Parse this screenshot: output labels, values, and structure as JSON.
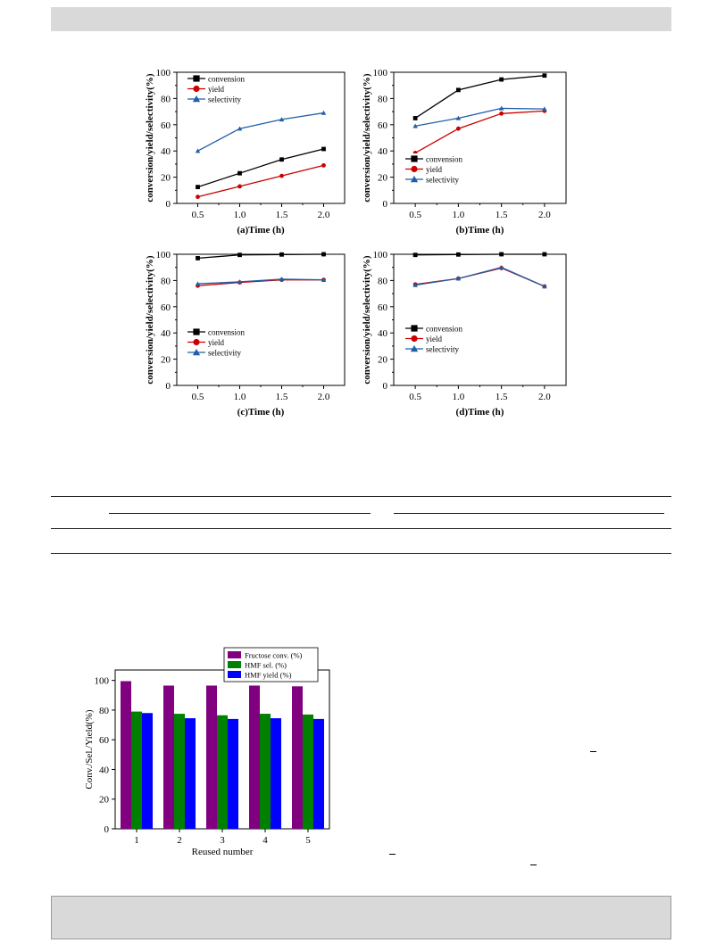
{
  "chart_data": [
    {
      "type": "line",
      "panel": "a",
      "xlabel": "(a)Time (h)",
      "ylabel": "conversion/yield/selectivity(%)",
      "x": [
        0.5,
        1.0,
        1.5,
        2.0
      ],
      "xticks": [
        "0.5",
        "1.0",
        "1.5",
        "2.0"
      ],
      "yticks": [
        "0",
        "20",
        "40",
        "60",
        "80",
        "100"
      ],
      "xlim": [
        0.25,
        2.25
      ],
      "ylim": [
        0,
        100
      ],
      "legend_position": "top-left",
      "series": [
        {
          "name": "convension",
          "color": "#000000",
          "marker": "square",
          "values": [
            12.5,
            23,
            33.5,
            41.5
          ]
        },
        {
          "name": "yield",
          "color": "#cc0000",
          "marker": "circle",
          "values": [
            5,
            13,
            21,
            29
          ]
        },
        {
          "name": "selectivity",
          "color": "#1f5fa8",
          "marker": "triangle",
          "values": [
            40,
            57,
            64,
            69
          ]
        }
      ]
    },
    {
      "type": "line",
      "panel": "b",
      "xlabel": "(b)Time (h)",
      "ylabel": "conversion/yield/selectivity(%)",
      "x": [
        0.5,
        1.0,
        1.5,
        2.0
      ],
      "xticks": [
        "0.5",
        "1.0",
        "1.5",
        "2.0"
      ],
      "yticks": [
        "0",
        "20",
        "40",
        "60",
        "80",
        "100"
      ],
      "xlim": [
        0.25,
        2.25
      ],
      "ylim": [
        0,
        100
      ],
      "legend_position": "bottom-left",
      "series": [
        {
          "name": "convension",
          "color": "#000000",
          "marker": "square",
          "values": [
            65,
            86.5,
            94.5,
            97.5
          ]
        },
        {
          "name": "yield",
          "color": "#cc0000",
          "marker": "circle",
          "values": [
            38.5,
            57,
            68.5,
            70.5
          ]
        },
        {
          "name": "selectivity",
          "color": "#1f5fa8",
          "marker": "triangle",
          "values": [
            59,
            65,
            72.5,
            72
          ]
        }
      ]
    },
    {
      "type": "line",
      "panel": "c",
      "xlabel": "(c)Time (h)",
      "ylabel": "conversion/yield/selectivity(%)",
      "x": [
        0.5,
        1.0,
        1.5,
        2.0
      ],
      "xticks": [
        "0.5",
        "1.0",
        "1.5",
        "2.0"
      ],
      "yticks": [
        "0",
        "20",
        "40",
        "60",
        "80",
        "100"
      ],
      "xlim": [
        0.25,
        2.25
      ],
      "ylim": [
        0,
        100
      ],
      "legend_position": "bottom-left",
      "series": [
        {
          "name": "convension",
          "color": "#000000",
          "marker": "square",
          "values": [
            97,
            99.5,
            99.8,
            100
          ]
        },
        {
          "name": "yield",
          "color": "#cc0000",
          "marker": "circle",
          "values": [
            76,
            78.5,
            80.5,
            80.5
          ]
        },
        {
          "name": "selectivity",
          "color": "#1f5fa8",
          "marker": "triangle",
          "values": [
            77.5,
            79,
            81,
            80.5
          ]
        }
      ]
    },
    {
      "type": "line",
      "panel": "d",
      "xlabel": "(d)Time (h)",
      "ylabel": "conversion/yield/selectivity(%)",
      "x": [
        0.5,
        1.0,
        1.5,
        2.0
      ],
      "xticks": [
        "0.5",
        "1.0",
        "1.5",
        "2.0"
      ],
      "yticks": [
        "0",
        "20",
        "40",
        "60",
        "80",
        "100"
      ],
      "xlim": [
        0.25,
        2.25
      ],
      "ylim": [
        0,
        100
      ],
      "legend_position": "bottom-left",
      "series": [
        {
          "name": "convension",
          "color": "#000000",
          "marker": "square",
          "values": [
            99.5,
            99.8,
            100,
            100
          ]
        },
        {
          "name": "yield",
          "color": "#cc0000",
          "marker": "circle",
          "values": [
            77,
            81.5,
            89.5,
            75.5
          ]
        },
        {
          "name": "selectivity",
          "color": "#1f5fa8",
          "marker": "triangle",
          "values": [
            76.5,
            81.5,
            90,
            75.5
          ]
        }
      ]
    },
    {
      "type": "bar",
      "panel": "reuse",
      "xlabel": "Reused number",
      "ylabel": "Conv./Sel./Yield(%)",
      "categories": [
        "1",
        "2",
        "3",
        "4",
        "5"
      ],
      "yticks": [
        "0",
        "20",
        "40",
        "60",
        "80",
        "100"
      ],
      "ylim": [
        0,
        107
      ],
      "legend_position": "top-right",
      "series": [
        {
          "name": "Fructose conv. (%)",
          "color": "#800080",
          "values": [
            99.5,
            96.5,
            96.5,
            96.5,
            96
          ]
        },
        {
          "name": "HMF sel. (%)",
          "color": "#008000",
          "values": [
            79,
            77.5,
            76.5,
            77.5,
            77
          ]
        },
        {
          "name": "HMF yield (%)",
          "color": "#0000ff",
          "values": [
            78,
            74.5,
            74,
            74.5,
            74
          ]
        }
      ]
    }
  ]
}
